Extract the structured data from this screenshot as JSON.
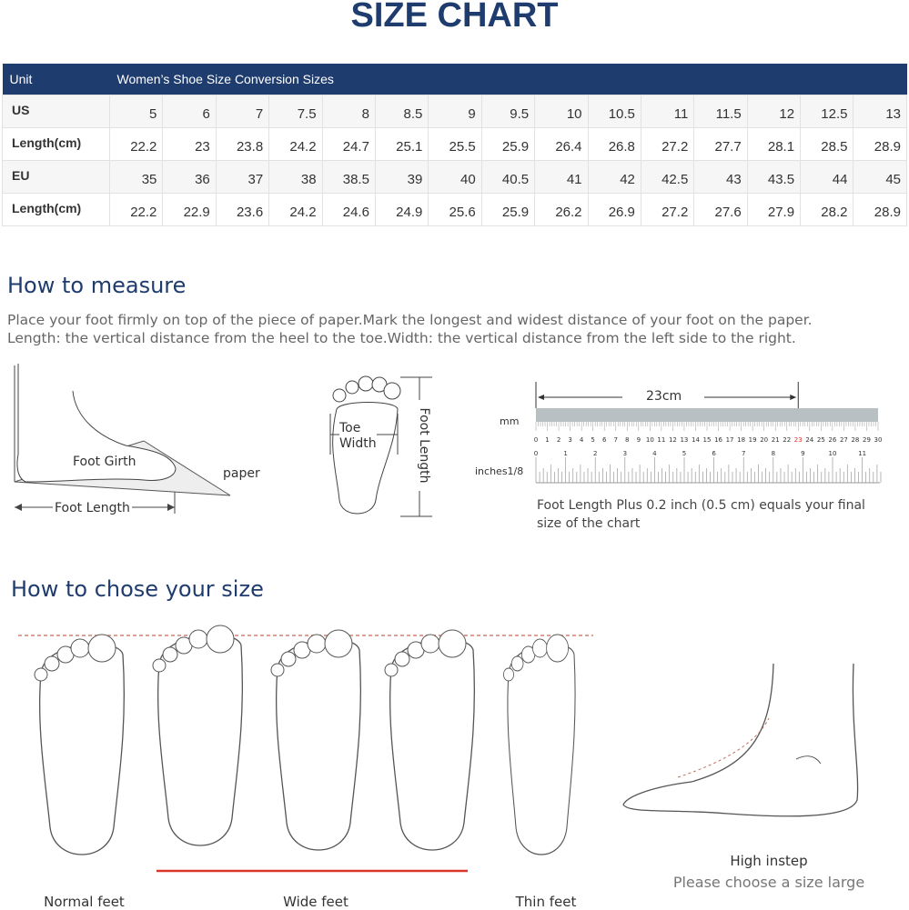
{
  "title": "SIZE CHART",
  "table": {
    "header": [
      "Unit",
      "Women’s Shoe Size Conversion Sizes"
    ],
    "rows": [
      {
        "label": "US",
        "values": [
          "5",
          "6",
          "7",
          "7.5",
          "8",
          "8.5",
          "9",
          "9.5",
          "10",
          "10.5",
          "11",
          "11.5",
          "12",
          "12.5",
          "13"
        ]
      },
      {
        "label": "Length(cm)",
        "values": [
          "22.2",
          "23",
          "23.8",
          "24.2",
          "24.7",
          "25.1",
          "25.5",
          "25.9",
          "26.4",
          "26.8",
          "27.2",
          "27.7",
          "28.1",
          "28.5",
          "28.9"
        ]
      },
      {
        "label": "EU",
        "values": [
          "35",
          "36",
          "37",
          "38",
          "38.5",
          "39",
          "40",
          "40.5",
          "41",
          "42",
          "42.5",
          "43",
          "43.5",
          "44",
          "45"
        ]
      },
      {
        "label": "Length(cm)",
        "values": [
          "22.2",
          "22.9",
          "23.6",
          "24.2",
          "24.6",
          "24.9",
          "25.6",
          "25.9",
          "26.2",
          "26.9",
          "27.2",
          "27.6",
          "27.9",
          "28.2",
          "28.9"
        ]
      }
    ]
  },
  "measure": {
    "heading": "How to measure",
    "line1": "Place your foot firmly on top of the piece of paper.Mark the longest and widest distance of your foot on the paper.",
    "line2": "Length: the vertical distance from the heel to the toe.Width: the vertical distance from the left side to the right.",
    "side": {
      "girth": "Foot Girth",
      "paper": "paper",
      "length": "Foot Length"
    },
    "top": {
      "toe": "Toe",
      "width": "Width",
      "length": "Foot Length"
    },
    "ruler": {
      "span": "23cm",
      "mm_label": "mm",
      "inch_label": "inches1/8",
      "mm_ticks": [
        "0",
        "1",
        "2",
        "3",
        "4",
        "5",
        "6",
        "7",
        "8",
        "9",
        "10",
        "11",
        "12",
        "13",
        "14",
        "15",
        "16",
        "17",
        "18",
        "19",
        "20",
        "21",
        "22",
        "23",
        "24",
        "25",
        "26",
        "27",
        "28",
        "29",
        "30"
      ],
      "inch_ticks": [
        "0",
        "1",
        "2",
        "3",
        "4",
        "5",
        "6",
        "7",
        "8",
        "9",
        "10",
        "11"
      ],
      "highlight": "23",
      "highlight_color": "#d9352b"
    },
    "note1": "Foot Length Plus 0.2 inch (0.5 cm) equals your final",
    "note2": "size of the chart"
  },
  "choose": {
    "heading": "How to chose your size",
    "normal": "Normal feet",
    "wide": "Wide feet",
    "thin": "Thin feet",
    "instep": "High instep",
    "instep_note": "Please choose a size large"
  },
  "colors": {
    "brand": "#1f3c6e",
    "accent_red": "#d9352b"
  }
}
